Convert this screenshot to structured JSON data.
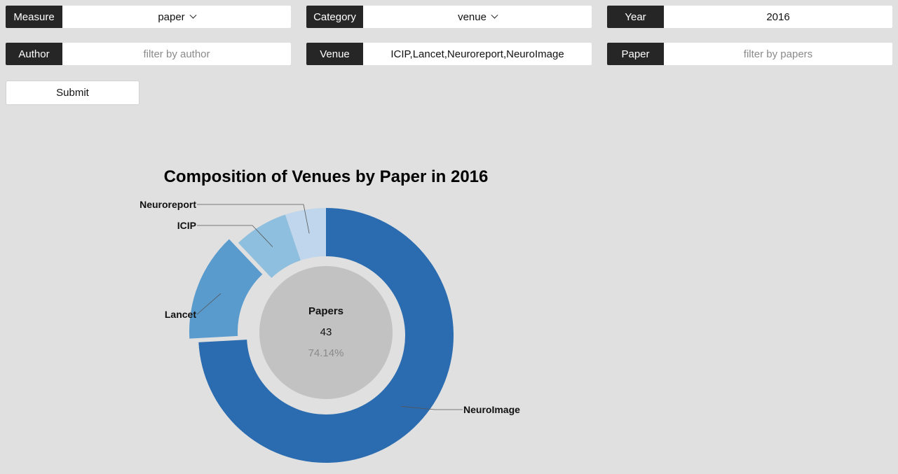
{
  "filters": {
    "measure": {
      "label": "Measure",
      "value": "paper"
    },
    "category": {
      "label": "Category",
      "value": "venue"
    },
    "year": {
      "label": "Year",
      "value": "2016"
    },
    "author": {
      "label": "Author",
      "value": "",
      "placeholder": "filter by author"
    },
    "venue": {
      "label": "Venue",
      "value": "ICIP,Lancet,Neuroreport,NeuroImage",
      "placeholder": ""
    },
    "paper": {
      "label": "Paper",
      "value": "",
      "placeholder": "filter by papers"
    }
  },
  "submit_label": "Submit",
  "chart_data": {
    "type": "pie",
    "title": "Composition of Venues by Paper in 2016",
    "center": {
      "label": "Papers",
      "value": "43",
      "percent": "74.14%"
    },
    "slices": [
      {
        "name": "NeuroImage",
        "value": 43,
        "color": "#2b6cb0"
      },
      {
        "name": "Lancet",
        "value": 8,
        "color": "#5a9bce"
      },
      {
        "name": "ICIP",
        "value": 4,
        "color": "#8fbfde"
      },
      {
        "name": "Neuroreport",
        "value": 3,
        "color": "#c0d6ec"
      }
    ]
  }
}
